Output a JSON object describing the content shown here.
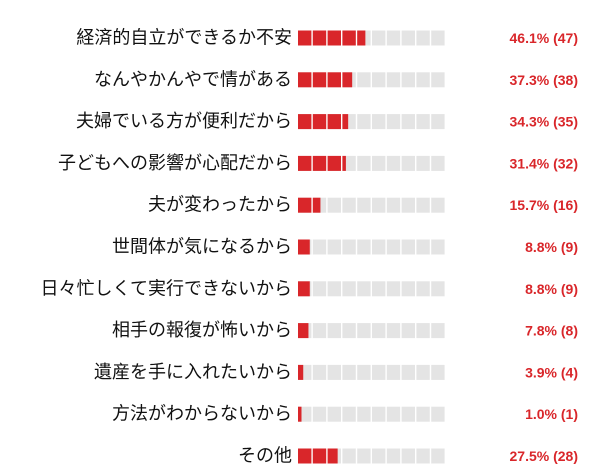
{
  "chart_data": {
    "type": "bar",
    "orientation": "horizontal",
    "style": "segmented-blocks",
    "segments_per_bar": 10,
    "categories": [
      "経済的自立ができるか不安",
      "なんやかんやで情がある",
      "夫婦でいる方が便利だから",
      "子どもへの影響が心配だから",
      "夫が変わったから",
      "世間体が気になるから",
      "日々忙しくて実行できないから",
      "相手の報復が怖いから",
      "遺産を手に入れたいから",
      "方法がわからないから",
      "その他"
    ],
    "values": [
      46.1,
      37.3,
      34.3,
      31.4,
      15.7,
      8.8,
      8.8,
      7.8,
      3.9,
      1.0,
      27.5
    ],
    "value_labels": [
      "46.1% (47)",
      "37.3% (38)",
      "34.3% (35)",
      "31.4% (32)",
      "15.7% (16)",
      "8.8% (9)",
      "8.8% (9)",
      "7.8% (8)",
      "3.9% (4)",
      "1.0% (1)",
      "27.5% (28)"
    ],
    "xlim": [
      0,
      100
    ],
    "colors": {
      "filled": "#d9262a",
      "empty": "#e4e4e4",
      "value_text": "#d9262a",
      "label_text": "#111111"
    }
  }
}
